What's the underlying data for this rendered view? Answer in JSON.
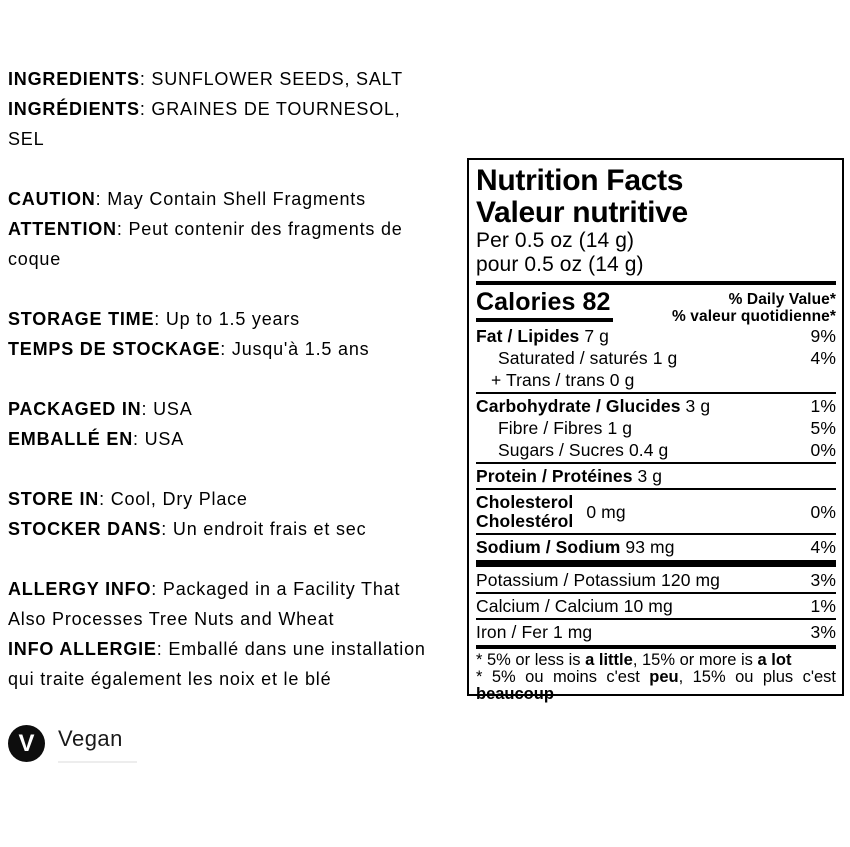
{
  "left_column": {
    "blocks": {
      "ingredients": {
        "lines": [
          {
            "label": "INGREDIENTS",
            "text": ": SUNFLOWER SEEDS, SALT"
          },
          {
            "label": "INGRÉDIENTS",
            "text": ": GRAINES DE TOURNESOL,"
          },
          {
            "label": "",
            "text": "SEL"
          }
        ]
      },
      "caution": {
        "lines": [
          {
            "label": "CAUTION",
            "text": ": May Contain Shell Fragments"
          },
          {
            "label": "ATTENTION",
            "text": ": Peut contenir des fragments de"
          },
          {
            "label": "",
            "text": "coque"
          }
        ]
      },
      "storage": {
        "lines": [
          {
            "label": "STORAGE TIME",
            "text": ": Up to 1.5 years"
          },
          {
            "label": "TEMPS DE STOCKAGE",
            "text": ": Jusqu'à 1.5 ans"
          }
        ]
      },
      "packaged": {
        "lines": [
          {
            "label": "PACKAGED IN",
            "text": ": USA"
          },
          {
            "label": "EMBALLÉ EN",
            "text": ": USA"
          }
        ]
      },
      "store": {
        "lines": [
          {
            "label": "STORE IN",
            "text": ": Cool, Dry Place"
          },
          {
            "label": "STOCKER DANS",
            "text": ": Un endroit frais et sec"
          }
        ]
      },
      "allergy": {
        "lines": [
          {
            "label": "ALLERGY INFO",
            "text": ": Packaged in a Facility That"
          },
          {
            "label": "",
            "text": "Also Processes Tree Nuts and Wheat"
          },
          {
            "label": "INFO ALLERGIE",
            "text": ": Emballé dans une installation"
          },
          {
            "label": "",
            "text": "qui traite également les noix et le blé"
          }
        ]
      }
    },
    "vegan": {
      "icon_letter": "V",
      "label": "Vegan"
    }
  },
  "panel": {
    "title_en": "Nutrition Facts",
    "title_fr": "Valeur nutritive",
    "serving_en": "Per 0.5 oz (14 g)",
    "serving_fr": "pour 0.5 oz (14 g)",
    "calories": {
      "label": "Calories",
      "value": "82"
    },
    "daily_value_en": "% Daily Value*",
    "daily_value_fr": "% valeur quotidienne*",
    "rows": [
      {
        "bold": "Fat / Lipides",
        "rest": " 7 g",
        "pct": "9%"
      },
      {
        "bold": "",
        "rest": "Saturated / saturés 1 g",
        "pct": "4%"
      },
      {
        "bold": "",
        "rest": "+ Trans / trans 0 g",
        "pct": ""
      },
      {
        "bold": "Carbohydrate / Glucides",
        "rest": " 3 g",
        "pct": "1%"
      },
      {
        "bold": "",
        "rest": "Fibre / Fibres 1 g",
        "pct": "5%"
      },
      {
        "bold": "",
        "rest": "Sugars / Sucres 0.4 g",
        "pct": "0%"
      },
      {
        "bold": "Protein / Protéines",
        "rest": " 3 g",
        "pct": ""
      },
      {
        "bold": "Sodium / Sodium",
        "rest": " 93 mg",
        "pct": "4%"
      },
      {
        "bold": "",
        "rest": "Potassium / Potassium 120 mg",
        "pct": "3%"
      },
      {
        "bold": "",
        "rest": "Calcium / Calcium 10 mg",
        "pct": "1%"
      },
      {
        "bold": "",
        "rest": "Iron / Fer 1 mg",
        "pct": "3%"
      }
    ],
    "cholesterol": {
      "label_en": "Cholesterol",
      "label_fr": "Cholestérol",
      "value": "0 mg",
      "pct": "0%"
    },
    "footnote_en": {
      "p1": "* 5% or less is ",
      "b1": "a little",
      "p2": ", 15% or more is ",
      "b2": "a lot"
    },
    "footnote_fr": {
      "p1": "* 5% ou moins c'est ",
      "b1": "peu",
      "p2": ", 15% ou plus c'est",
      "b2": "beaucoup"
    }
  }
}
